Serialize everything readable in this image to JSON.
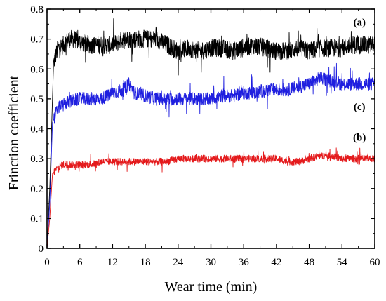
{
  "chart_data": {
    "type": "line",
    "title": "",
    "xlabel": "Wear time (min)",
    "ylabel": "Frinction coefficient",
    "xlim": [
      0,
      60
    ],
    "ylim": [
      0,
      0.8
    ],
    "x_ticks": [
      0,
      6,
      12,
      18,
      24,
      30,
      36,
      42,
      48,
      54,
      60
    ],
    "y_ticks": [
      0,
      0.1,
      0.2,
      0.3,
      0.4,
      0.5,
      0.6,
      0.7,
      0.8
    ],
    "y_tick_labels": [
      "0",
      "0.1",
      "0.2",
      "0.3",
      "0.4",
      "0.5",
      "0.6",
      "0.7",
      "0.8"
    ],
    "grid": false,
    "legend": "none",
    "series": [
      {
        "name": "(a)",
        "color": "#000000",
        "noise": 0.03,
        "x": [
          0,
          0.5,
          1.2,
          2,
          3,
          4,
          5,
          6,
          8,
          10,
          12,
          14,
          16,
          18,
          20,
          22,
          24,
          26,
          28,
          30,
          32,
          34,
          36,
          38,
          40,
          42,
          44,
          46,
          48,
          50,
          52,
          54,
          56,
          58,
          60
        ],
        "values": [
          0,
          0.2,
          0.62,
          0.67,
          0.68,
          0.7,
          0.7,
          0.69,
          0.68,
          0.68,
          0.68,
          0.7,
          0.7,
          0.7,
          0.7,
          0.68,
          0.66,
          0.67,
          0.66,
          0.67,
          0.67,
          0.66,
          0.67,
          0.68,
          0.67,
          0.66,
          0.66,
          0.67,
          0.66,
          0.67,
          0.67,
          0.67,
          0.68,
          0.68,
          0.68
        ]
      },
      {
        "name": "(c)",
        "color": "#1f1fdf",
        "noise": 0.022,
        "x": [
          0,
          0.5,
          1,
          2,
          3,
          4,
          6,
          8,
          10,
          12,
          14,
          15,
          16,
          18,
          20,
          22,
          24,
          26,
          28,
          30,
          32,
          34,
          36,
          38,
          40,
          42,
          44,
          46,
          48,
          50,
          52,
          54,
          56,
          58,
          60
        ],
        "values": [
          0,
          0.15,
          0.42,
          0.47,
          0.48,
          0.49,
          0.5,
          0.5,
          0.5,
          0.52,
          0.53,
          0.55,
          0.52,
          0.51,
          0.5,
          0.5,
          0.5,
          0.5,
          0.5,
          0.5,
          0.51,
          0.51,
          0.52,
          0.52,
          0.53,
          0.53,
          0.53,
          0.54,
          0.55,
          0.57,
          0.56,
          0.55,
          0.55,
          0.55,
          0.55
        ]
      },
      {
        "name": "(b)",
        "color": "#e41a1c",
        "noise": 0.012,
        "x": [
          0,
          0.5,
          1,
          2,
          3,
          4,
          6,
          8,
          10,
          12,
          14,
          16,
          18,
          20,
          22,
          24,
          26,
          28,
          30,
          32,
          34,
          36,
          38,
          40,
          42,
          44,
          46,
          48,
          50,
          52,
          54,
          56,
          58,
          60
        ],
        "values": [
          0,
          0.1,
          0.25,
          0.27,
          0.28,
          0.28,
          0.28,
          0.28,
          0.29,
          0.29,
          0.29,
          0.29,
          0.29,
          0.29,
          0.29,
          0.3,
          0.3,
          0.3,
          0.3,
          0.3,
          0.3,
          0.3,
          0.3,
          0.3,
          0.3,
          0.29,
          0.29,
          0.3,
          0.31,
          0.31,
          0.3,
          0.3,
          0.3,
          0.3
        ]
      }
    ],
    "annotations": [
      {
        "text": "(a)",
        "x": 57.2,
        "y": 0.745
      },
      {
        "text": "(c)",
        "x": 57.2,
        "y": 0.462
      },
      {
        "text": "(b)",
        "x": 57.2,
        "y": 0.36
      }
    ]
  }
}
